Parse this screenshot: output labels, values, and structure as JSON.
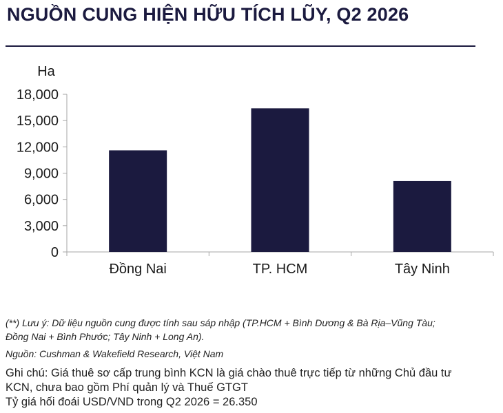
{
  "header": {
    "title": "NGUỒN CUNG HIỆN HỮU TÍCH LŨY, Q2 2026"
  },
  "chart_data": {
    "type": "bar",
    "title": "NGUỒN CUNG HIỆN HỮU TÍCH LŨY, Q2 2026",
    "ylabel": "Ha",
    "xlabel": "",
    "categories": [
      "Đồng Nai",
      "TP. HCM",
      "Tây Ninh"
    ],
    "values": [
      11600,
      16400,
      8100
    ],
    "ylim": [
      0,
      18000
    ],
    "yticks": [
      0,
      3000,
      6000,
      9000,
      12000,
      15000,
      18000
    ],
    "ytick_labels": [
      "0",
      "3,000",
      "6,000",
      "9,000",
      "12,000",
      "15,000",
      "18,000"
    ],
    "grid": false,
    "legend": "none",
    "bar_color": "#1b1a3f"
  },
  "notes": {
    "footnote_line1": "(**) Lưu ý: Dữ liệu nguồn cung được tính sau sáp nhập (TP.HCM + Bình Dương & Bà Rịa–Vũng Tàu;",
    "footnote_line2": "Đồng Nai + Bình Phước; Tây Ninh + Long An).",
    "source": "Nguồn: Cushman & Wakefield Research, Việt Nam",
    "remark_line1": "Ghi chú: Giá thuê sơ cấp trung bình KCN là giá chào thuê trực tiếp từ những Chủ đầu tư",
    "remark_line2": "KCN, chưa bao gồm Phí quản lý và Thuế GTGT",
    "remark_line3": "Tỷ giá hối đoái USD/VND trong Q2 2026 = 26.350"
  }
}
